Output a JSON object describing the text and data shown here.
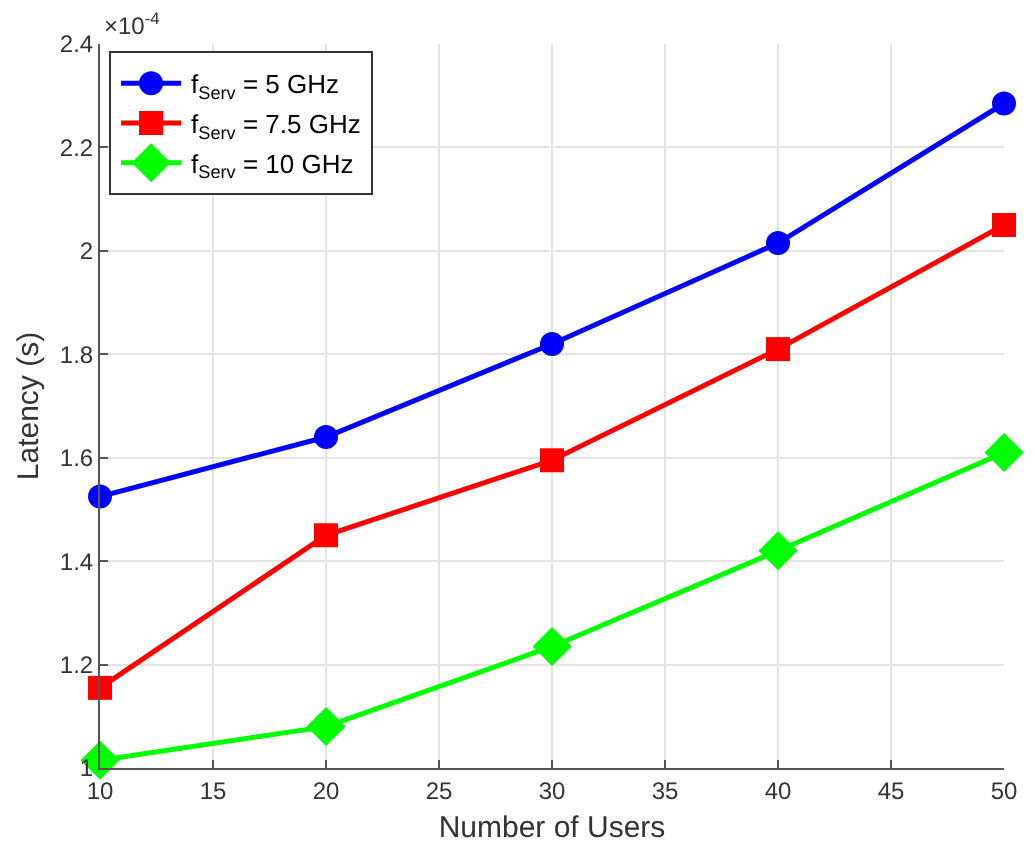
{
  "chart_data": {
    "type": "line",
    "xlabel": "Number of Users",
    "ylabel": "Latency (s)",
    "x": [
      10,
      20,
      30,
      40,
      50
    ],
    "series": [
      {
        "name": "f$_{Serv}$ = 5 GHz",
        "color": "#0000ff",
        "marker": "circle",
        "values": [
          1.525,
          1.64,
          1.82,
          2.015,
          2.285
        ]
      },
      {
        "name": "f$_{Serv}$ = 7.5 GHz",
        "color": "#ff0000",
        "marker": "square",
        "values": [
          1.155,
          1.45,
          1.595,
          1.81,
          2.05
        ]
      },
      {
        "name": "f$_{Serv}$ = 10 GHz",
        "color": "#00ff00",
        "marker": "diamond",
        "values": [
          1.015,
          1.08,
          1.235,
          1.42,
          1.61
        ]
      }
    ],
    "annotations": [
      "×10$^{-4}$"
    ],
    "xlim": [
      10,
      50
    ],
    "xticks": [
      10,
      15,
      20,
      25,
      30,
      35,
      40,
      45,
      50
    ],
    "ylim": [
      1,
      2.4
    ],
    "yticks": [
      1,
      1.2,
      1.4,
      1.6,
      1.8,
      2,
      2.2,
      2.4
    ],
    "grid": true,
    "legend": "top left",
    "line_style": "solid"
  }
}
